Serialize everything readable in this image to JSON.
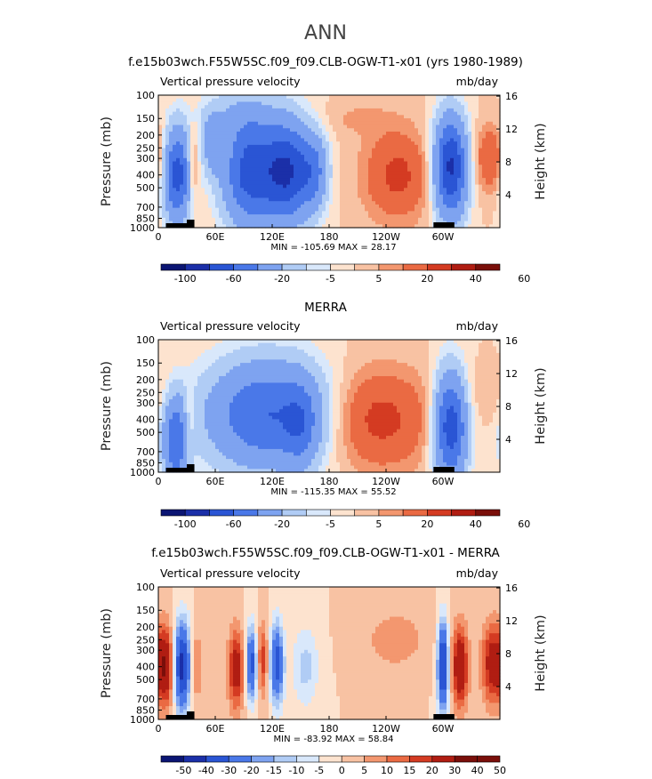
{
  "figure": {
    "title": "ANN"
  },
  "colorscales": {
    "full": [
      "#0b1573",
      "#1b2fa8",
      "#2a55d4",
      "#4a78e8",
      "#7ea3f0",
      "#b0ccf5",
      "#d9e8fb",
      "#fde3cf",
      "#f8c2a3",
      "#f3976f",
      "#ea6a43",
      "#d43b22",
      "#b01d12",
      "#7a0f0a"
    ],
    "diff": [
      "#0b1573",
      "#1b2fa8",
      "#2a55d4",
      "#4a78e8",
      "#7ea3f0",
      "#b0ccf5",
      "#d9e8fb",
      "#fde3cf",
      "#f8c2a3",
      "#f3976f",
      "#ea6a43",
      "#d43b22",
      "#b01d12",
      "#7a0f0a"
    ]
  },
  "chart_data": [
    {
      "type": "heatmap",
      "title": "f.e15b03wch.F55W5SC.f09_f09.CLB-OGW-T1-x01 (yrs 1980-1989)",
      "variable_label": "Vertical pressure velocity",
      "units_label": "mb/day",
      "ylabel": "Pressure (mb)",
      "ylabel_right": "Height (km)",
      "x_ticks": [
        "0",
        "60E",
        "120E",
        "180",
        "120W",
        "60W"
      ],
      "x_tick_values": [
        0,
        60,
        120,
        180,
        240,
        300
      ],
      "xlim": [
        0,
        360
      ],
      "y_ticks": [
        "100",
        "150",
        "200",
        "250",
        "300",
        "400",
        "500",
        "700",
        "850",
        "1000"
      ],
      "y_tick_values": [
        100,
        150,
        200,
        250,
        300,
        400,
        500,
        700,
        850,
        1000
      ],
      "ylim": [
        100,
        1000
      ],
      "yscale": "log",
      "y_right_ticks": [
        "16",
        "12",
        "8",
        "4"
      ],
      "min_max_text": "MIN = -105.69   MAX =  28.17",
      "colorbar_labels": [
        "-100",
        "-60",
        "-20",
        "-5",
        "5",
        "20",
        "40",
        "60"
      ],
      "colorbar_levels": [
        -120,
        -100,
        -80,
        -60,
        -40,
        -20,
        -10,
        -5,
        0,
        5,
        10,
        20,
        30,
        40,
        60
      ],
      "min": -105.69,
      "max": 28.17,
      "features": [
        {
          "lon": 20,
          "p": 400,
          "wlon": 10,
          "wp": 0.55,
          "value": -70
        },
        {
          "lon": 36,
          "p": 350,
          "wlon": 4,
          "wp": 0.45,
          "value": 20
        },
        {
          "lon": 57,
          "p": 230,
          "wlon": 7,
          "wp": 0.35,
          "value": -30
        },
        {
          "lon": 97,
          "p": 380,
          "wlon": 20,
          "wp": 0.65,
          "value": -70
        },
        {
          "lon": 137,
          "p": 380,
          "wlon": 17,
          "wp": 0.6,
          "value": -75
        },
        {
          "lon": 165,
          "p": 380,
          "wlon": 10,
          "wp": 0.45,
          "value": -35
        },
        {
          "lon": 80,
          "p": 140,
          "wlon": 30,
          "wp": 0.3,
          "value": -12
        },
        {
          "lon": 210,
          "p": 150,
          "wlon": 25,
          "wp": 0.2,
          "value": 6
        },
        {
          "lon": 252,
          "p": 400,
          "wlon": 25,
          "wp": 0.55,
          "value": 23
        },
        {
          "lon": 308,
          "p": 350,
          "wlon": 12,
          "wp": 0.6,
          "value": -85
        },
        {
          "lon": 350,
          "p": 300,
          "wlon": 12,
          "wp": 0.4,
          "value": 20
        }
      ]
    },
    {
      "type": "heatmap",
      "title": "MERRA",
      "variable_label": "Vertical pressure velocity",
      "units_label": "mb/day",
      "ylabel": "Pressure (mb)",
      "ylabel_right": "Height (km)",
      "x_ticks": [
        "0",
        "60E",
        "120E",
        "180",
        "120W",
        "60W"
      ],
      "x_tick_values": [
        0,
        60,
        120,
        180,
        240,
        300
      ],
      "xlim": [
        0,
        360
      ],
      "y_ticks": [
        "100",
        "150",
        "200",
        "250",
        "300",
        "400",
        "500",
        "700",
        "850",
        "1000"
      ],
      "y_tick_values": [
        100,
        150,
        200,
        250,
        300,
        400,
        500,
        700,
        850,
        1000
      ],
      "ylim": [
        100,
        1000
      ],
      "yscale": "log",
      "y_right_ticks": [
        "16",
        "12",
        "8",
        "4"
      ],
      "min_max_text": "MIN = -115.35   MAX =  55.52",
      "colorbar_labels": [
        "-100",
        "-60",
        "-20",
        "-5",
        "5",
        "20",
        "40",
        "60"
      ],
      "colorbar_levels": [
        -120,
        -100,
        -80,
        -60,
        -40,
        -20,
        -10,
        -5,
        0,
        5,
        10,
        20,
        30,
        40,
        60
      ],
      "min": -115.35,
      "max": 55.52,
      "features": [
        {
          "lon": 18,
          "p": 600,
          "wlon": 9,
          "wp": 0.55,
          "value": -55
        },
        {
          "lon": 33,
          "p": 400,
          "wlon": 5,
          "wp": 0.35,
          "value": 12
        },
        {
          "lon": 115,
          "p": 370,
          "wlon": 45,
          "wp": 0.65,
          "value": -60
        },
        {
          "lon": 150,
          "p": 450,
          "wlon": 12,
          "wp": 0.5,
          "value": -25
        },
        {
          "lon": 230,
          "p": 400,
          "wlon": 40,
          "wp": 0.6,
          "value": 25
        },
        {
          "lon": 308,
          "p": 450,
          "wlon": 12,
          "wp": 0.65,
          "value": -75
        },
        {
          "lon": 340,
          "p": 250,
          "wlon": 25,
          "wp": 0.35,
          "value": 5
        }
      ]
    },
    {
      "type": "heatmap",
      "title": "f.e15b03wch.F55W5SC.f09_f09.CLB-OGW-T1-x01 - MERRA",
      "variable_label": "Vertical pressure velocity",
      "units_label": "mb/day",
      "ylabel": "Pressure (mb)",
      "ylabel_right": "Height (km)",
      "x_ticks": [
        "0",
        "60E",
        "120E",
        "180",
        "120W",
        "60W"
      ],
      "x_tick_values": [
        0,
        60,
        120,
        180,
        240,
        300
      ],
      "xlim": [
        0,
        360
      ],
      "y_ticks": [
        "100",
        "150",
        "200",
        "250",
        "300",
        "400",
        "500",
        "700",
        "850",
        "1000"
      ],
      "y_tick_values": [
        100,
        150,
        200,
        250,
        300,
        400,
        500,
        700,
        850,
        1000
      ],
      "ylim": [
        100,
        1000
      ],
      "yscale": "log",
      "y_right_ticks": [
        "16",
        "12",
        "8",
        "4"
      ],
      "min_max_text": "MIN = -83.92   MAX =  58.84",
      "colorbar_labels": [
        "-50",
        "-40",
        "-30",
        "-20",
        "-15",
        "-10",
        "-5",
        "0",
        "5",
        "10",
        "15",
        "20",
        "30",
        "40",
        "50"
      ],
      "colorbar_levels": [
        -60,
        -50,
        -40,
        -30,
        -20,
        -15,
        -10,
        -5,
        0,
        5,
        10,
        15,
        20,
        30,
        40,
        50
      ],
      "min": -83.92,
      "max": 58.84,
      "features": [
        {
          "lon": 8,
          "p": 400,
          "wlon": 6,
          "wp": 0.5,
          "value": 28
        },
        {
          "lon": 25,
          "p": 400,
          "wlon": 6,
          "wp": 0.55,
          "value": -45
        },
        {
          "lon": 40,
          "p": 400,
          "wlon": 4,
          "wp": 0.45,
          "value": 12
        },
        {
          "lon": 82,
          "p": 420,
          "wlon": 6,
          "wp": 0.5,
          "value": 25
        },
        {
          "lon": 98,
          "p": 380,
          "wlon": 4,
          "wp": 0.45,
          "value": -35
        },
        {
          "lon": 110,
          "p": 350,
          "wlon": 4,
          "wp": 0.45,
          "value": 18
        },
        {
          "lon": 125,
          "p": 380,
          "wlon": 5,
          "wp": 0.5,
          "value": -35
        },
        {
          "lon": 155,
          "p": 400,
          "wlon": 10,
          "wp": 0.5,
          "value": -12
        },
        {
          "lon": 250,
          "p": 250,
          "wlon": 25,
          "wp": 0.4,
          "value": 8
        },
        {
          "lon": 300,
          "p": 400,
          "wlon": 4,
          "wp": 0.55,
          "value": -45
        },
        {
          "lon": 318,
          "p": 400,
          "wlon": 6,
          "wp": 0.5,
          "value": 30
        },
        {
          "lon": 352,
          "p": 380,
          "wlon": 8,
          "wp": 0.5,
          "value": 25
        }
      ]
    }
  ]
}
